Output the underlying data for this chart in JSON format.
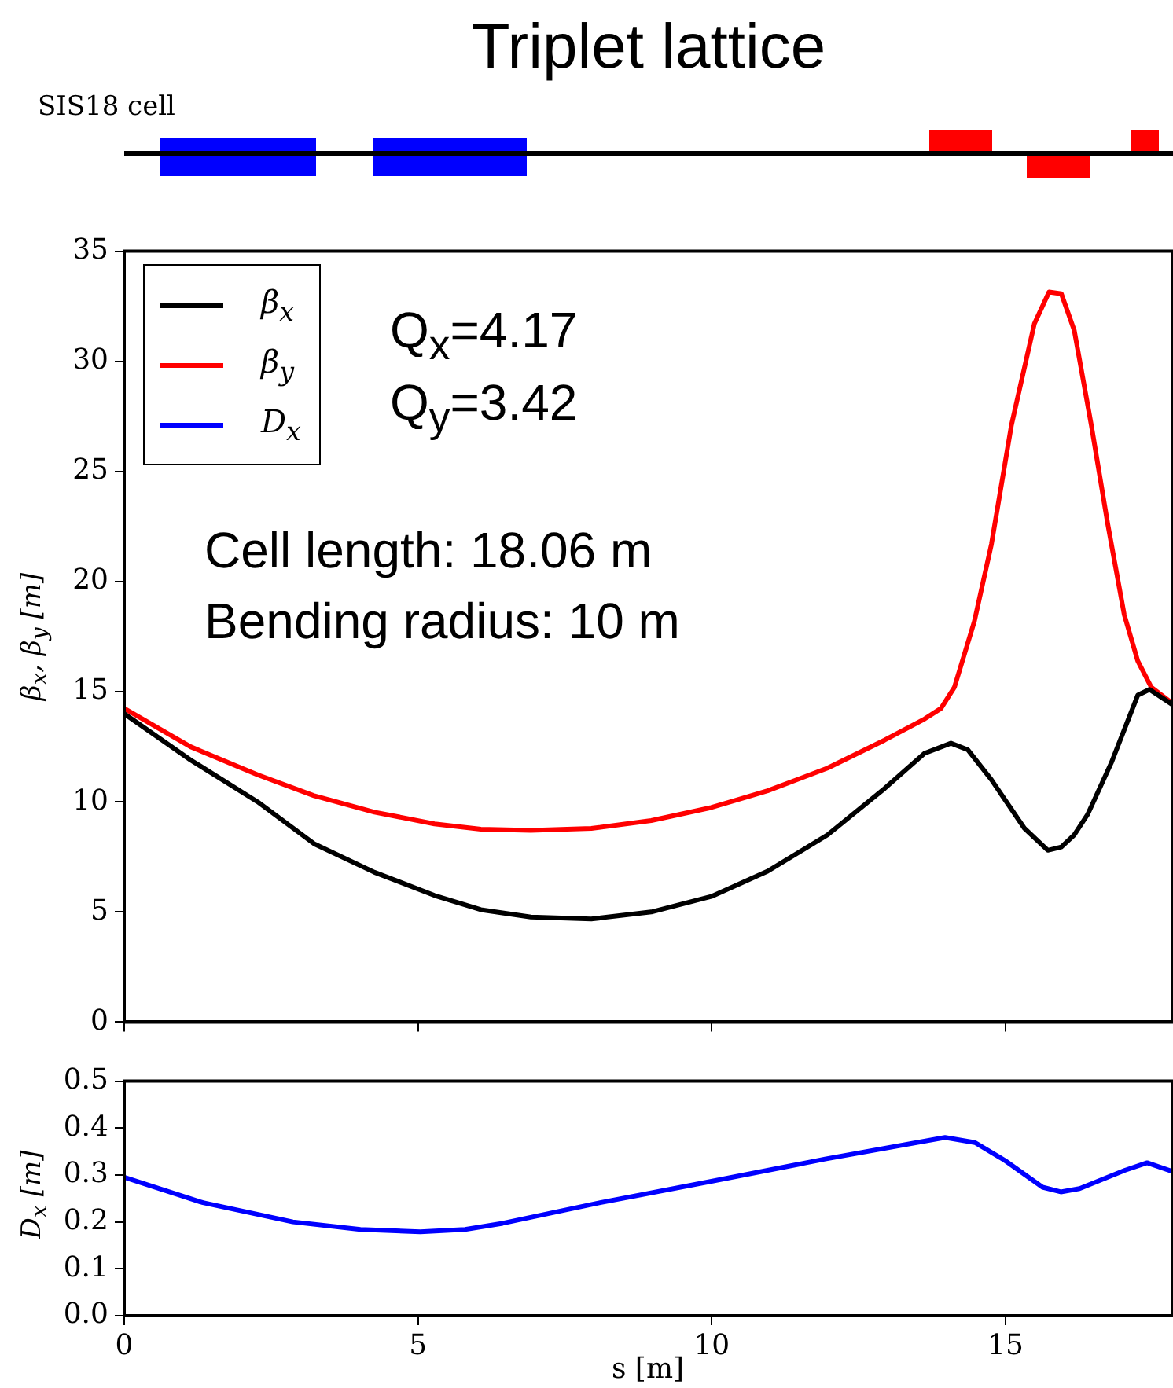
{
  "chart_data": [
    {
      "type": "line",
      "title": "Triplet lattice",
      "ylabel": "β$_{x}$, β$_{y}$ [m]",
      "annotations": [
        "SIS18 cell",
        "Q$_{x}$=4.17",
        "Q$_{y}$=3.42",
        "Cell length: 18.06 m",
        "Bending radius: 10 m"
      ],
      "series": [
        {
          "name": "β$_{x}$",
          "color": "#000000",
          "x": [
            0,
            1.13,
            2.27,
            3.23,
            4.26,
            5.28,
            6.07,
            6.92,
            7.95,
            8.97,
            9.99,
            10.95,
            11.97,
            12.94,
            13.62,
            14.07,
            14.36,
            14.76,
            15.32,
            15.72,
            15.95,
            16.17,
            16.4,
            16.8,
            17.25,
            17.45,
            17.85
          ],
          "values": [
            14.0,
            11.9,
            10.0,
            8.1,
            6.8,
            5.75,
            5.1,
            4.77,
            4.68,
            5.0,
            5.7,
            6.85,
            8.5,
            10.6,
            12.2,
            12.66,
            12.36,
            11.0,
            8.8,
            7.8,
            7.95,
            8.5,
            9.44,
            11.77,
            14.84,
            15.1,
            14.4
          ]
        },
        {
          "name": "β$_{y}$",
          "color": "#ff0000",
          "x": [
            0,
            1.13,
            2.27,
            3.23,
            4.26,
            5.28,
            6.07,
            6.92,
            7.95,
            8.97,
            9.99,
            10.95,
            11.97,
            12.94,
            13.62,
            13.9,
            14.13,
            14.47,
            14.76,
            15.1,
            15.49,
            15.74,
            15.95,
            16.17,
            16.46,
            16.74,
            17.02,
            17.25,
            17.48,
            17.85
          ],
          "values": [
            14.24,
            12.5,
            11.23,
            10.28,
            9.53,
            9.0,
            8.76,
            8.7,
            8.79,
            9.15,
            9.74,
            10.5,
            11.53,
            12.8,
            13.76,
            14.24,
            15.2,
            18.2,
            21.7,
            27.1,
            31.7,
            33.15,
            33.07,
            31.4,
            27.1,
            22.6,
            18.5,
            16.4,
            15.2,
            14.45
          ]
        }
      ],
      "xlim": [
        0,
        17.85
      ],
      "xticks": [
        0,
        5,
        10,
        15
      ],
      "ylim": [
        0,
        35
      ],
      "yticks": [
        0,
        5,
        10,
        15,
        20,
        25,
        30,
        35
      ],
      "tick_labels": "y",
      "grid": false,
      "legend": "top left"
    },
    {
      "type": "line",
      "xlabel": "s [m]",
      "ylabel": "D$_{x}$ [m]",
      "series": [
        {
          "name": "D$_{x}$",
          "color": "#0000ff",
          "x": [
            0,
            1.34,
            2.87,
            4.02,
            5.04,
            5.8,
            6.44,
            8.1,
            10.01,
            11.93,
            13.97,
            14.48,
            14.99,
            15.63,
            15.94,
            16.26,
            17.03,
            17.41,
            17.85
          ],
          "values": [
            0.295,
            0.241,
            0.2,
            0.184,
            0.179,
            0.184,
            0.197,
            0.241,
            0.287,
            0.334,
            0.38,
            0.369,
            0.331,
            0.274,
            0.264,
            0.271,
            0.31,
            0.326,
            0.307
          ]
        }
      ],
      "xlim": [
        0,
        17.85
      ],
      "xticks": [
        0,
        5,
        10,
        15
      ],
      "ylim": [
        0,
        0.5
      ],
      "yticks": [
        {
          "value": 0,
          "label": "0.0"
        },
        0.1,
        0.2,
        0.3,
        0.4,
        0.5
      ],
      "grid": false
    }
  ]
}
